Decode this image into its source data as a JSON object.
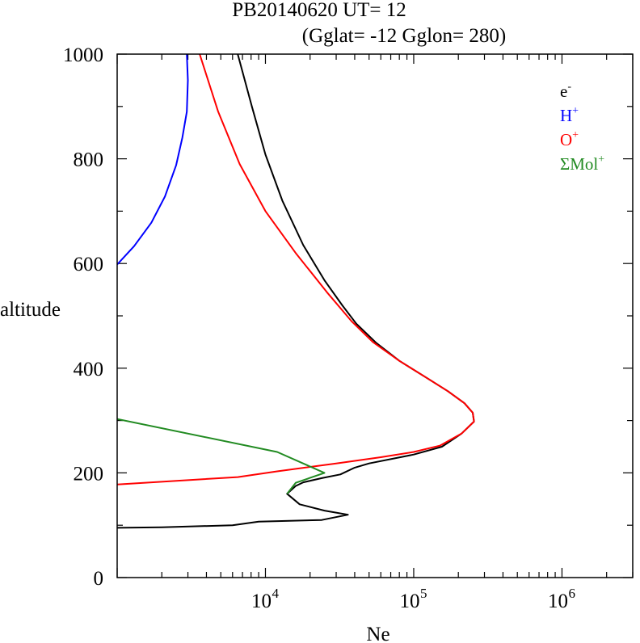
{
  "chart_data": {
    "type": "line",
    "title": "PB20140620   UT=  12",
    "subtitle": "(Gglat= -12   Gglon=  280)",
    "xlabel": "Ne",
    "ylabel": "altitude",
    "x_scale": "log",
    "xlim": [
      1000,
      3000000
    ],
    "ylim": [
      0,
      1000
    ],
    "x_ticks": [
      {
        "value": 10000,
        "base": "10",
        "exp": "4"
      },
      {
        "value": 100000,
        "base": "10",
        "exp": "5"
      },
      {
        "value": 1000000,
        "base": "10",
        "exp": "6"
      }
    ],
    "y_ticks": [
      0,
      200,
      400,
      600,
      800,
      1000
    ],
    "legend_position": "top-right",
    "series": [
      {
        "name": "e",
        "sup": "-",
        "color": "#000000",
        "points": [
          [
            1000,
            95
          ],
          [
            2000,
            96
          ],
          [
            6000,
            100
          ],
          [
            9000,
            107
          ],
          [
            24000,
            110
          ],
          [
            36000,
            120
          ],
          [
            25000,
            128
          ],
          [
            17000,
            140
          ],
          [
            14000,
            160
          ],
          [
            16000,
            175
          ],
          [
            18000,
            182
          ],
          [
            24000,
            190
          ],
          [
            32000,
            197
          ],
          [
            40000,
            210
          ],
          [
            50000,
            218
          ],
          [
            100000,
            235
          ],
          [
            155000,
            250
          ],
          [
            210000,
            275
          ],
          [
            255000,
            298
          ],
          [
            250000,
            315
          ],
          [
            220000,
            333
          ],
          [
            170000,
            356
          ],
          [
            120000,
            383
          ],
          [
            80000,
            414
          ],
          [
            56000,
            448
          ],
          [
            41000,
            485
          ],
          [
            33000,
            520
          ],
          [
            25000,
            568
          ],
          [
            18000,
            635
          ],
          [
            13000,
            720
          ],
          [
            10000,
            808
          ],
          [
            8100,
            900
          ],
          [
            6500,
            1000
          ]
        ]
      },
      {
        "name": "H",
        "sup": "+",
        "color": "#0000ff",
        "points": [
          [
            1000,
            598
          ],
          [
            1300,
            633
          ],
          [
            1700,
            678
          ],
          [
            2100,
            728
          ],
          [
            2500,
            788
          ],
          [
            2750,
            840
          ],
          [
            2950,
            890
          ],
          [
            3000,
            950
          ],
          [
            2950,
            1000
          ]
        ]
      },
      {
        "name": "O",
        "sup": "+",
        "color": "#ff0000",
        "points": [
          [
            1000,
            178
          ],
          [
            6500,
            192
          ],
          [
            12000,
            203
          ],
          [
            30000,
            218
          ],
          [
            60000,
            230
          ],
          [
            100000,
            240
          ],
          [
            150000,
            252
          ],
          [
            210000,
            275
          ],
          [
            255000,
            298
          ],
          [
            250000,
            315
          ],
          [
            220000,
            333
          ],
          [
            170000,
            356
          ],
          [
            120000,
            383
          ],
          [
            80000,
            414
          ],
          [
            53000,
            450
          ],
          [
            38000,
            490
          ],
          [
            26000,
            545
          ],
          [
            16000,
            620
          ],
          [
            10000,
            700
          ],
          [
            6700,
            790
          ],
          [
            4800,
            890
          ],
          [
            3600,
            1000
          ]
        ]
      },
      {
        "name": "ΣMol",
        "sup": "+",
        "color": "#228b22",
        "points": [
          [
            1000,
            303
          ],
          [
            12000,
            240
          ],
          [
            25000,
            200
          ],
          [
            16000,
            181
          ],
          [
            14000,
            160
          ]
        ]
      }
    ]
  }
}
